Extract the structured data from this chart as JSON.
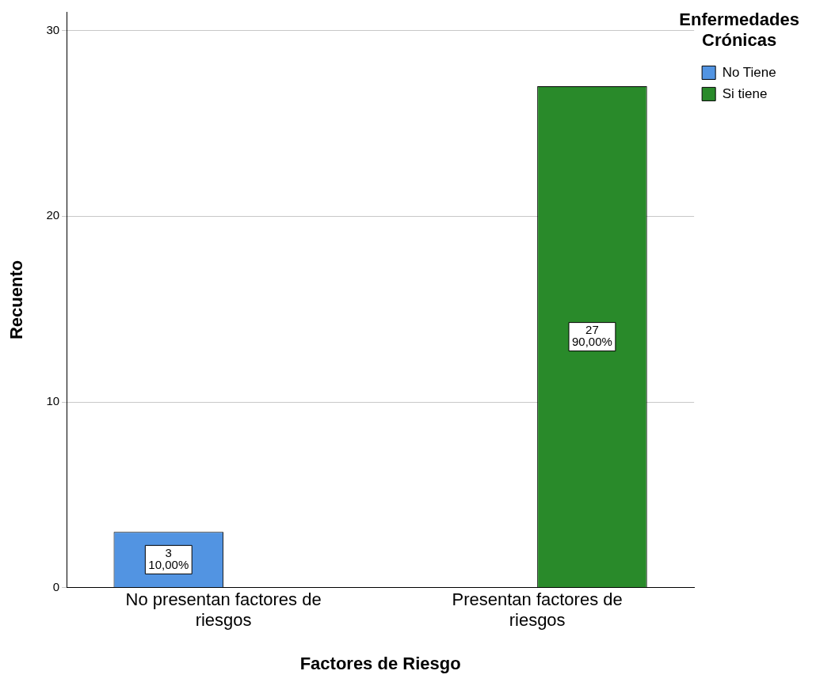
{
  "chart_data": {
    "type": "bar",
    "xlabel": "Factores de Riesgo",
    "ylabel": "Recuento",
    "legend_title": "Enfermedades Crónicas",
    "categories": [
      "No presentan factores de riesgos",
      "Presentan factores de riesgos"
    ],
    "series": [
      {
        "name": "No Tiene",
        "color": "#5294e2",
        "values": [
          3,
          null
        ],
        "value_labels": [
          "3\n10,00%",
          null
        ]
      },
      {
        "name": "Si tiene",
        "color": "#298a2a",
        "values": [
          null,
          27
        ],
        "value_labels": [
          null,
          "27\n90,00%"
        ]
      }
    ],
    "ylim": [
      0,
      31
    ],
    "yticks": [
      0,
      10,
      20,
      30
    ],
    "grid": "y",
    "legend": "top right"
  }
}
